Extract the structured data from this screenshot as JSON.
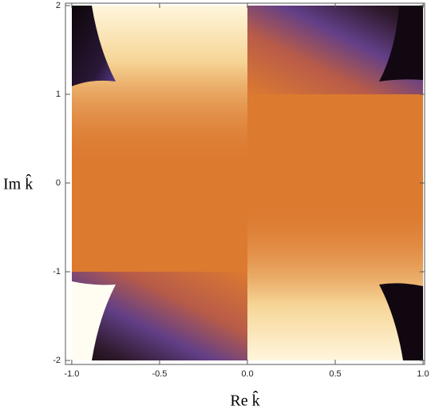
{
  "chart_data": {
    "type": "density",
    "xlabel": "Re k̂",
    "ylabel": "Im k̂",
    "xlim": [
      -1.036,
      1.009
    ],
    "ylim": [
      -2.045,
      2.027
    ],
    "xticks": [
      {
        "value": -1,
        "label": "-1.0"
      },
      {
        "value": -0.5,
        "label": "-0.5"
      },
      {
        "value": 0,
        "label": "0.0"
      },
      {
        "value": 0.5,
        "label": "0.5"
      },
      {
        "value": 1,
        "label": "1.0"
      }
    ],
    "yticks": [
      -2,
      -1,
      0,
      1,
      2
    ]
  }
}
